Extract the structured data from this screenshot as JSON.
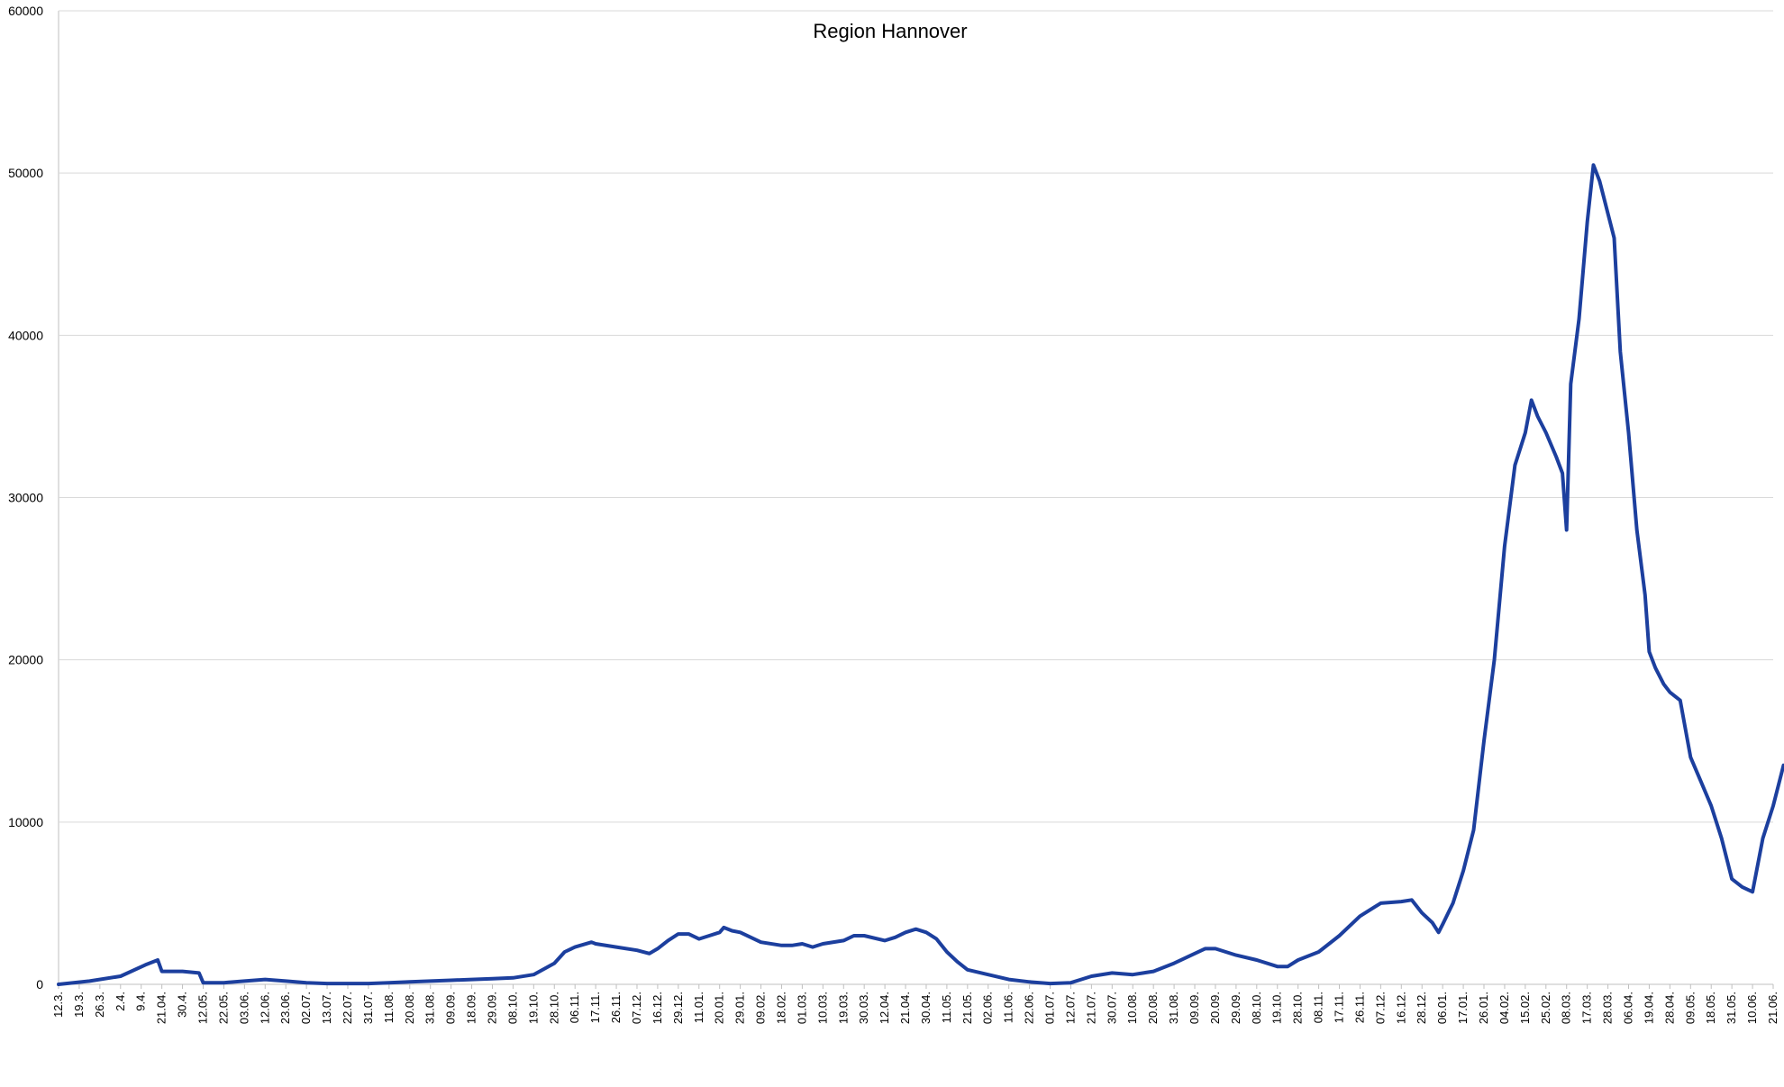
{
  "chart_data": {
    "type": "line",
    "title": "Region Hannover",
    "xlabel": "",
    "ylabel": "",
    "ylim": [
      0,
      60000
    ],
    "yticks": [
      0,
      10000,
      20000,
      30000,
      40000,
      50000,
      60000
    ],
    "grid": "horizontal",
    "legend": "none",
    "colors": {
      "line": "#1c3f9e",
      "grid": "#d9d9d9",
      "axis": "#bfbfbf"
    },
    "categories": [
      "12.3.",
      "19.3.",
      "26.3.",
      "2.4.",
      "9.4.",
      "21.04.",
      "30.4.",
      "12.05.",
      "22.05.",
      "03.06.",
      "12.06.",
      "23.06.",
      "02.07.",
      "13.07.",
      "22.07.",
      "31.07.",
      "11.08.",
      "20.08.",
      "31.08.",
      "09.09.",
      "18.09.",
      "29.09.",
      "08.10.",
      "19.10.",
      "28.10.",
      "06.11.",
      "17.11.",
      "26.11.",
      "07.12.",
      "16.12.",
      "29.12.",
      "11.01.",
      "20.01.",
      "29.01.",
      "09.02.",
      "18.02.",
      "01.03.",
      "10.03.",
      "19.03.",
      "30.03.",
      "12.04.",
      "21.04.",
      "30.04.",
      "11.05.",
      "21.05.",
      "02.06.",
      "11.06.",
      "22.06.",
      "01.07.",
      "12.07.",
      "21.07.",
      "30.07.",
      "10.08.",
      "20.08.",
      "31.08.",
      "09.09.",
      "20.09.",
      "29.09.",
      "08.10.",
      "19.10.",
      "28.10.",
      "08.11.",
      "17.11.",
      "26.11.",
      "07.12.",
      "16.12.",
      "28.12.",
      "06.01.",
      "17.01.",
      "26.01.",
      "04.02.",
      "15.02.",
      "25.02.",
      "08.03.",
      "17.03.",
      "28.03.",
      "06.04.",
      "19.04.",
      "28.04.",
      "09.05.",
      "18.05.",
      "31.05.",
      "10.06.",
      "21.06."
    ],
    "series": [
      {
        "values": [
          [
            0,
            0
          ],
          [
            1.5,
            200
          ],
          [
            3,
            500
          ],
          [
            4.2,
            1200
          ],
          [
            4.8,
            1500
          ],
          [
            5,
            800
          ],
          [
            6,
            800
          ],
          [
            6.8,
            700
          ],
          [
            7,
            100
          ],
          [
            8,
            100
          ],
          [
            9,
            200
          ],
          [
            10,
            300
          ],
          [
            11,
            200
          ],
          [
            12,
            100
          ],
          [
            13,
            50
          ],
          [
            14,
            50
          ],
          [
            15,
            50
          ],
          [
            16,
            100
          ],
          [
            17,
            150
          ],
          [
            18,
            200
          ],
          [
            19,
            250
          ],
          [
            20,
            300
          ],
          [
            21,
            350
          ],
          [
            22,
            400
          ],
          [
            23,
            600
          ],
          [
            24,
            1300
          ],
          [
            24.5,
            2000
          ],
          [
            25,
            2300
          ],
          [
            25.8,
            2600
          ],
          [
            26,
            2500
          ],
          [
            27,
            2300
          ],
          [
            28,
            2100
          ],
          [
            28.6,
            1900
          ],
          [
            29,
            2200
          ],
          [
            29.5,
            2700
          ],
          [
            30,
            3100
          ],
          [
            30.5,
            3100
          ],
          [
            31,
            2800
          ],
          [
            31.5,
            3000
          ],
          [
            32,
            3200
          ],
          [
            32.2,
            3500
          ],
          [
            32.6,
            3300
          ],
          [
            33,
            3200
          ],
          [
            34,
            2600
          ],
          [
            35,
            2400
          ],
          [
            35.5,
            2400
          ],
          [
            36,
            2500
          ],
          [
            36.5,
            2300
          ],
          [
            37,
            2500
          ],
          [
            38,
            2700
          ],
          [
            38.5,
            3000
          ],
          [
            39,
            3000
          ],
          [
            40,
            2700
          ],
          [
            40.5,
            2900
          ],
          [
            41,
            3200
          ],
          [
            41.5,
            3400
          ],
          [
            42,
            3200
          ],
          [
            42.5,
            2800
          ],
          [
            43,
            2000
          ],
          [
            43.5,
            1400
          ],
          [
            44,
            900
          ],
          [
            45,
            600
          ],
          [
            46,
            300
          ],
          [
            47,
            150
          ],
          [
            48,
            50
          ],
          [
            49,
            100
          ],
          [
            49.5,
            300
          ],
          [
            50,
            500
          ],
          [
            51,
            700
          ],
          [
            52,
            600
          ],
          [
            53,
            800
          ],
          [
            54,
            1300
          ],
          [
            55,
            1900
          ],
          [
            55.5,
            2200
          ],
          [
            56,
            2200
          ],
          [
            57,
            1800
          ],
          [
            58,
            1500
          ],
          [
            59,
            1100
          ],
          [
            59.5,
            1100
          ],
          [
            60,
            1500
          ],
          [
            61,
            2000
          ],
          [
            62,
            3000
          ],
          [
            63,
            4200
          ],
          [
            64,
            5000
          ],
          [
            65,
            5100
          ],
          [
            65.5,
            5200
          ],
          [
            66,
            4400
          ],
          [
            66.5,
            3800
          ],
          [
            66.8,
            3200
          ],
          [
            67,
            3700
          ],
          [
            67.5,
            5000
          ],
          [
            68,
            7000
          ],
          [
            68.5,
            9500
          ],
          [
            69,
            15000
          ],
          [
            69.5,
            20000
          ],
          [
            70,
            27000
          ],
          [
            70.5,
            32000
          ],
          [
            71,
            34000
          ],
          [
            71.3,
            36000
          ],
          [
            71.6,
            35000
          ],
          [
            72,
            34000
          ],
          [
            72.5,
            32500
          ],
          [
            72.8,
            31500
          ],
          [
            73,
            28000
          ],
          [
            73.2,
            37000
          ],
          [
            73.6,
            41000
          ],
          [
            74,
            47000
          ],
          [
            74.3,
            50500
          ],
          [
            74.6,
            49500
          ],
          [
            75,
            47500
          ],
          [
            75.3,
            46000
          ],
          [
            75.6,
            39000
          ],
          [
            76,
            34000
          ],
          [
            76.4,
            28000
          ],
          [
            76.8,
            24000
          ],
          [
            77,
            20500
          ],
          [
            77.3,
            19500
          ],
          [
            77.7,
            18500
          ],
          [
            78,
            18000
          ],
          [
            78.5,
            17500
          ],
          [
            79,
            14000
          ],
          [
            79.5,
            12500
          ],
          [
            80,
            11000
          ],
          [
            80.5,
            9000
          ],
          [
            81,
            6500
          ],
          [
            81.5,
            6000
          ],
          [
            82,
            5700
          ],
          [
            82.5,
            9000
          ],
          [
            83,
            11000
          ],
          [
            83.5,
            13500
          ]
        ]
      }
    ]
  }
}
